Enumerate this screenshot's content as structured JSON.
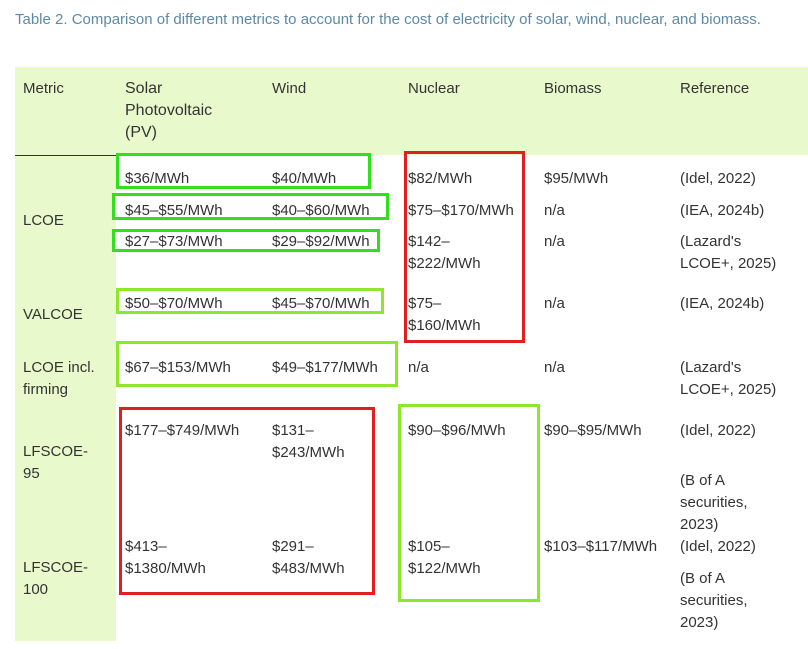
{
  "caption": "Table 2. Comparison of different metrics to account for the cost of electricity of solar, wind, nuclear, and biomass.",
  "table": {
    "header": [
      "Metric",
      "Solar Photovoltaic (PV)",
      "Wind",
      "Nuclear",
      "Biomass",
      "Reference"
    ],
    "rows": [
      {
        "metric": "LCOE",
        "entries": [
          [
            "$36/MWh",
            "$40/MWh",
            "$82/MWh",
            "$95/MWh",
            "(Idel, 2022)"
          ],
          [
            "$45–$55/MWh",
            "$40–$60/MWh",
            "$75–$170/MWh",
            "n/a",
            "(IEA, 2024b)"
          ],
          [
            "$27–$73/MWh",
            "$29–$92/MWh",
            "$142–$222/MWh",
            "n/a",
            "(Lazard's LCOE+, 2025)"
          ]
        ]
      },
      {
        "metric": "VALCOE",
        "entries": [
          [
            "$50–$70/MWh",
            "$45–$70/MWh",
            "$75–$160/MWh",
            "n/a",
            "(IEA, 2024b)"
          ]
        ]
      },
      {
        "metric": "LCOE incl. firming",
        "entries": [
          [
            "$67–$153/MWh",
            "$49–$177/MWh",
            "n/a",
            "n/a",
            "(Lazard's LCOE+, 2025)"
          ]
        ]
      },
      {
        "metric": "LFSCOE-95",
        "entries": [
          [
            "$177–$749/MWh",
            "$131–$243/MWh",
            "$90–$96/MWh",
            "$90–$95/MWh",
            "(Idel, 2022)"
          ]
        ],
        "extra_reference": "(B of A securities, 2023)"
      },
      {
        "metric": "LFSCOE-100",
        "entries": [
          [
            "$413–$1380/MWh",
            "$291–$483/MWh",
            "$105–$122/MWh",
            "$103–$117/MWh",
            "(Idel, 2022)"
          ]
        ],
        "extra_reference": "(B of A securities, 2023)"
      }
    ]
  }
}
